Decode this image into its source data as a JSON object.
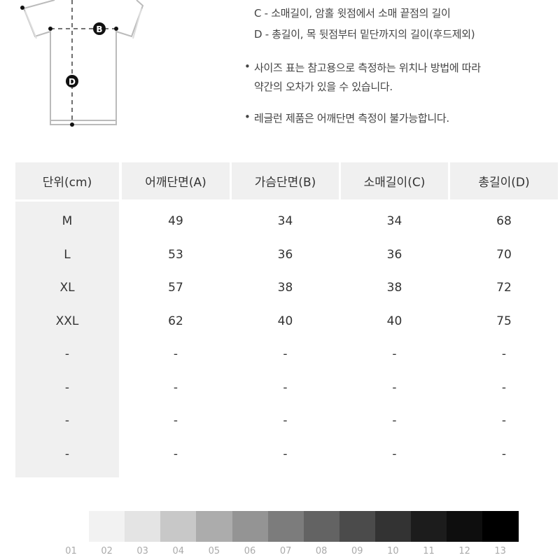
{
  "diagram": {
    "markers": [
      "B",
      "D"
    ]
  },
  "notes": {
    "line_c": "C - 소매길이, 암홀 윗점에서 소매 끝점의 길이",
    "line_d": "D - 총길이, 목 뒷점부터 밑단까지의 길이(후드제외)",
    "bullet1_line1": "사이즈 표는 참고용으로 측정하는 위치나 방법에 따라",
    "bullet1_line2": "약간의 오차가 있을 수 있습니다.",
    "bullet2": "레글런 제품은 어깨단면 측정이 불가능합니다.",
    "bullet_char": "•"
  },
  "table": {
    "headers": [
      "단위(cm)",
      "어깨단면(A)",
      "가슴단면(B)",
      "소매길이(C)",
      "총길이(D)"
    ],
    "rows": [
      [
        "M",
        "49",
        "34",
        "34",
        "68"
      ],
      [
        "L",
        "53",
        "36",
        "36",
        "70"
      ],
      [
        "XL",
        "57",
        "38",
        "38",
        "72"
      ],
      [
        "XXL",
        "62",
        "40",
        "40",
        "75"
      ],
      [
        "-",
        "-",
        "-",
        "-",
        "-"
      ],
      [
        "-",
        "-",
        "-",
        "-",
        "-"
      ],
      [
        "-",
        "-",
        "-",
        "-",
        "-"
      ],
      [
        "-",
        "-",
        "-",
        "-",
        "-"
      ]
    ]
  },
  "swatches": {
    "labels": [
      "01",
      "02",
      "03",
      "04",
      "05",
      "06",
      "07",
      "08",
      "09",
      "10",
      "11",
      "12",
      "13"
    ],
    "colors": [
      "#ffffff",
      "#f2f2f2",
      "#e4e4e4",
      "#c8c8c8",
      "#acacac",
      "#949494",
      "#7c7c7c",
      "#636363",
      "#4b4b4b",
      "#333333",
      "#1c1c1c",
      "#0e0e0e",
      "#000000"
    ]
  }
}
